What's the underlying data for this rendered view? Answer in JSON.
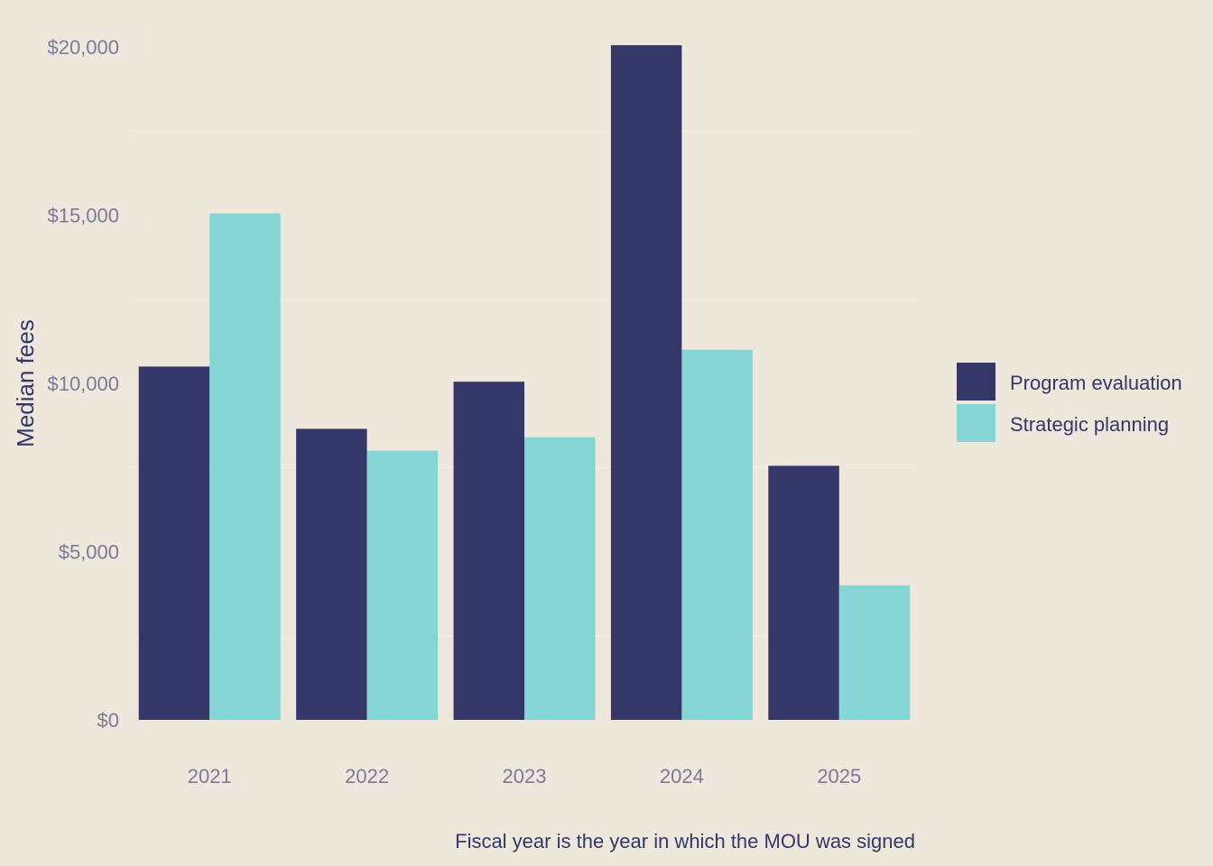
{
  "chart_data": {
    "type": "bar",
    "categories": [
      "2021",
      "2022",
      "2023",
      "2024",
      "2025"
    ],
    "series": [
      {
        "name": "Program evaluation",
        "color": "#343768",
        "values": [
          10500,
          8650,
          10050,
          20050,
          7550
        ]
      },
      {
        "name": "Strategic planning",
        "color": "#85D5D5",
        "values": [
          15050,
          8000,
          8400,
          11000,
          4000
        ]
      }
    ],
    "ylabel": "Median fees",
    "xlabel": "",
    "ylim": [
      0,
      20000
    ],
    "yticks": [
      0,
      5000,
      10000,
      15000,
      20000
    ],
    "ytick_labels": [
      "$0",
      "$5,000",
      "$10,000",
      "$15,000",
      "$20,000"
    ],
    "grid": true,
    "legend_position": "right",
    "caption": "Fiscal year is the year in which the MOU was signed"
  }
}
